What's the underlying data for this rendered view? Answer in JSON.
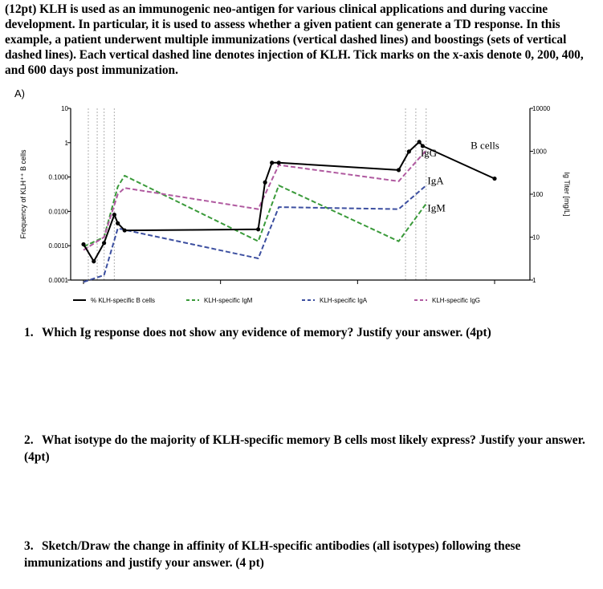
{
  "question": {
    "intro": "(12pt) KLH is used as an immunogenic neo-antigen for various clinical applications and during vaccine development. In particular, it is used to assess whether a given patient can generate a TD response. In this example, a patient underwent multiple immunizations (vertical dashed lines) and boostings (sets of vertical dashed lines). Each vertical dashed line denotes injection of KLH. Tick marks on the x-axis denote 0, 200, 400, and 600 days post immunization."
  },
  "figure": {
    "panel_label": "A)"
  },
  "chart_data": {
    "type": "line",
    "title": "",
    "xlabel": "",
    "ylabel_left": "Frequency of KLH⁺⁺ B cells",
    "ylabel_right": "Ig Titer [mg/L]",
    "x_ticks": [
      0,
      200,
      400,
      600
    ],
    "xlim": [
      -25,
      640
    ],
    "ylim_left": [
      0.0001,
      10
    ],
    "ylim_right": [
      1,
      10000
    ],
    "left_tick_labels": [
      "0.0001",
      "0.0010",
      "0.0100",
      "0.1000",
      "1",
      "10"
    ],
    "left_tick_values": [
      0.0001,
      0.001,
      0.01,
      0.1,
      1,
      10
    ],
    "right_tick_labels": [
      "1",
      "10",
      "100",
      "1000",
      "10000"
    ],
    "right_tick_values": [
      1,
      10,
      100,
      1000,
      10000
    ],
    "injection_days": [
      7,
      20,
      30,
      45,
      470,
      485,
      500
    ],
    "series": [
      {
        "name": "% KLH-specific B cells",
        "color": "#000000",
        "dash": "solid",
        "markers": true,
        "axis": "left",
        "x": [
          0,
          15,
          30,
          45,
          50,
          60,
          255,
          265,
          275,
          285,
          460,
          475,
          490,
          495,
          600
        ],
        "y": [
          0.0011,
          0.00035,
          0.0012,
          0.008,
          0.0045,
          0.0028,
          0.003,
          0.07,
          0.26,
          0.26,
          0.16,
          0.55,
          1.05,
          0.8,
          0.09
        ]
      },
      {
        "name": "KLH-specific IgM",
        "color": "#3a9a3a",
        "dash": "dashed",
        "markers": false,
        "axis": "right",
        "x": [
          0,
          30,
          50,
          60,
          255,
          285,
          460,
          500
        ],
        "y": [
          6,
          10,
          150,
          270,
          8,
          160,
          8,
          60
        ]
      },
      {
        "name": "KLH-specific IgA",
        "color": "#3c4fa0",
        "dash": "dashed",
        "markers": false,
        "axis": "right",
        "x": [
          0,
          30,
          50,
          255,
          285,
          460,
          500
        ],
        "y": [
          0.9,
          1.3,
          16,
          3.2,
          50,
          45,
          160
        ]
      },
      {
        "name": "KLH-specific IgG",
        "color": "#b05aa0",
        "dash": "dashed",
        "markers": false,
        "axis": "right",
        "x": [
          0,
          30,
          50,
          60,
          255,
          285,
          460,
          500
        ],
        "y": [
          5,
          10,
          100,
          140,
          45,
          480,
          200,
          1050
        ]
      }
    ],
    "annotations": [
      {
        "text": "B cells",
        "x": 565,
        "y_right": 1150
      },
      {
        "text": "IgG",
        "x": 492,
        "y_right": 750
      },
      {
        "text": "IgA",
        "x": 502,
        "y_right": 170
      },
      {
        "text": "IgM",
        "x": 502,
        "y_right": 40
      }
    ],
    "legend": "bottom"
  },
  "questions": [
    {
      "number": "1.",
      "text": "Which Ig response does not show any evidence of memory? Justify your answer. (4pt)"
    },
    {
      "number": "2.",
      "text": "What isotype do the majority of KLH-specific memory B cells most likely express? Justify your answer. (4pt)"
    },
    {
      "number": "3.",
      "text": "Sketch/Draw the change in affinity of KLH-specific antibodies (all isotypes) following these immunizations and justify your answer. (4 pt)"
    }
  ]
}
